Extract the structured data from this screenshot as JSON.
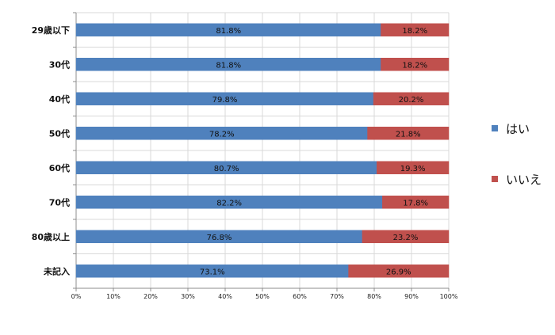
{
  "chart_data": {
    "type": "bar",
    "orientation": "horizontal",
    "stacked": "percent",
    "categories": [
      "29歳以下",
      "30代",
      "40代",
      "50代",
      "60代",
      "70代",
      "80歳以上",
      "未記入"
    ],
    "series": [
      {
        "name": "はい",
        "color": "#4f81bd",
        "values": [
          81.8,
          81.8,
          79.8,
          78.2,
          80.7,
          82.2,
          76.8,
          73.1
        ],
        "labels": [
          "81.8%",
          "81.8%",
          "79.8%",
          "78.2%",
          "80.7%",
          "82.2%",
          "76.8%",
          "73.1%"
        ]
      },
      {
        "name": "いいえ",
        "color": "#c0504d",
        "values": [
          18.2,
          18.2,
          20.2,
          21.8,
          19.3,
          17.8,
          23.2,
          26.9
        ],
        "labels": [
          "18.2%",
          "18.2%",
          "20.2%",
          "21.8%",
          "19.3%",
          "17.8%",
          "23.2%",
          "26.9%"
        ]
      }
    ],
    "x_ticks": [
      "0%",
      "10%",
      "20%",
      "30%",
      "40%",
      "50%",
      "60%",
      "70%",
      "80%",
      "90%",
      "100%"
    ],
    "xlim": [
      0,
      100
    ],
    "grid": true,
    "legend_position": "right",
    "title": "",
    "xlabel": "",
    "ylabel": ""
  }
}
